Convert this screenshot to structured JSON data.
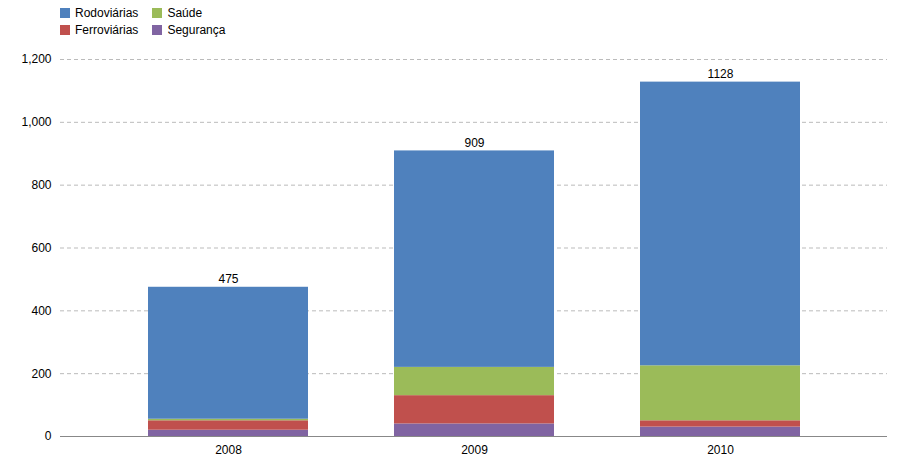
{
  "chart_data": {
    "type": "bar",
    "stacked": true,
    "categories": [
      "2008",
      "2009",
      "2010"
    ],
    "series": [
      {
        "name": "Segurança",
        "color": "#8064a2",
        "values": [
          20,
          40,
          30
        ]
      },
      {
        "name": "Ferroviárias",
        "color": "#c0504d",
        "values": [
          30,
          90,
          20
        ]
      },
      {
        "name": "Saúde",
        "color": "#9bbb59",
        "values": [
          5,
          90,
          175
        ]
      },
      {
        "name": "Rodoviárias",
        "color": "#4f81bd",
        "values": [
          420,
          689,
          903
        ]
      }
    ],
    "totals": [
      475,
      909,
      1128
    ],
    "ylim": [
      0,
      1200
    ],
    "yticks": [
      0,
      200,
      400,
      600,
      800,
      1000,
      1200
    ],
    "grid": true,
    "legend": "upper left"
  }
}
